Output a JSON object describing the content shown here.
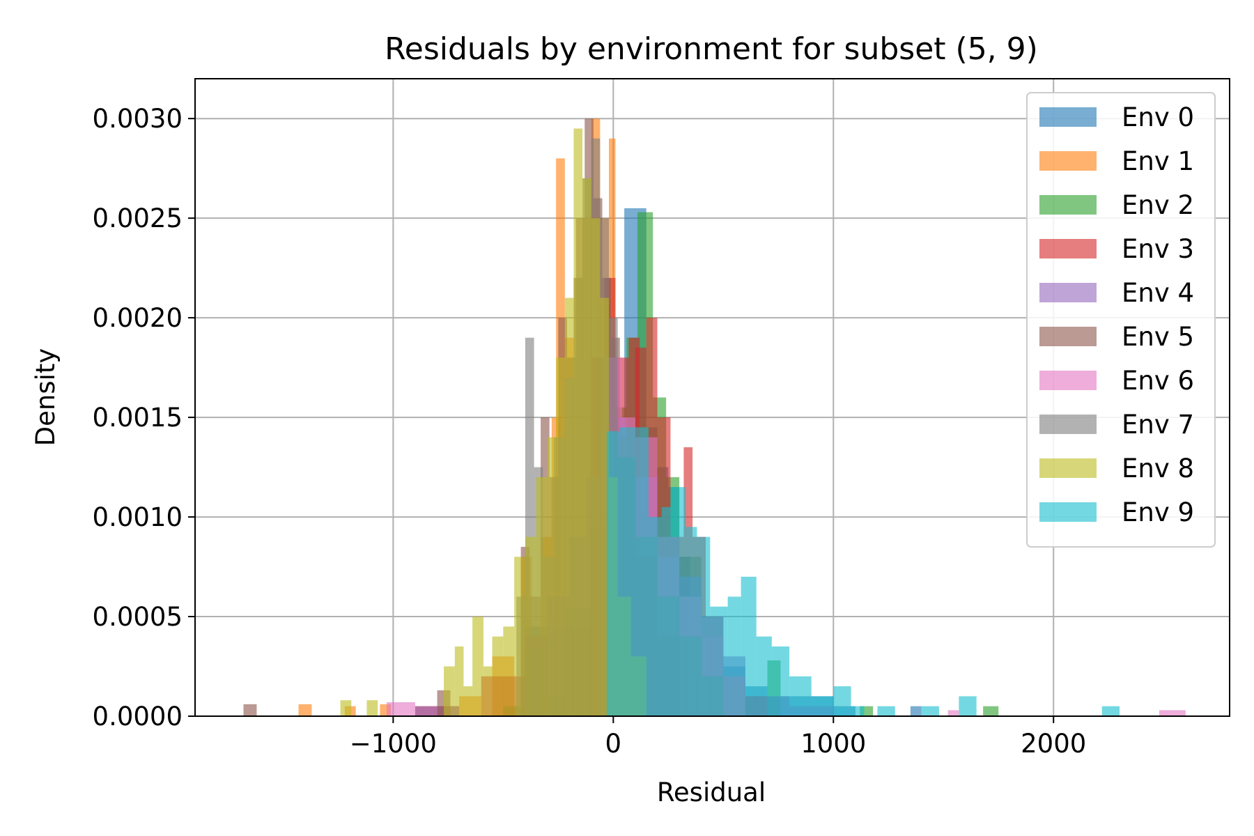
{
  "chart_data": {
    "type": "histogram",
    "title": "Residuals by environment for subset (5, 9)",
    "xlabel": "Residual",
    "ylabel": "Density",
    "xlim": [
      -1900,
      2800
    ],
    "ylim": [
      0,
      0.0032
    ],
    "xticks": [
      -1000,
      0,
      1000,
      2000
    ],
    "xtick_labels": [
      "−1000",
      "0",
      "1000",
      "2000"
    ],
    "yticks": [
      0.0,
      0.0005,
      0.001,
      0.0015,
      0.002,
      0.0025,
      0.003
    ],
    "ytick_labels": [
      "0.0000",
      "0.0005",
      "0.0010",
      "0.0015",
      "0.0020",
      "0.0025",
      "0.0030"
    ],
    "grid": true,
    "legend_position": "top-right",
    "alpha": 0.6,
    "series": [
      {
        "name": "Env 0",
        "color": "#1f77b4",
        "bins": [
          [
            -400,
            -100,
            0.00045
          ],
          [
            -100,
            0,
            0.0009
          ],
          [
            0,
            50,
            0.00145
          ],
          [
            50,
            150,
            0.00255
          ],
          [
            150,
            200,
            0.00145
          ],
          [
            200,
            250,
            0.00125
          ],
          [
            250,
            300,
            0.00115
          ],
          [
            300,
            350,
            0.0008
          ],
          [
            350,
            400,
            0.0006
          ],
          [
            400,
            450,
            0.0004
          ],
          [
            450,
            500,
            0.0003
          ],
          [
            500,
            600,
            0.00025
          ],
          [
            600,
            700,
            0.00015
          ],
          [
            700,
            1000,
            0.0001
          ],
          [
            1000,
            1100,
            5e-05
          ],
          [
            1350,
            1400,
            5e-05
          ]
        ]
      },
      {
        "name": "Env 1",
        "color": "#ff7f0e",
        "bins": [
          [
            -1430,
            -1370,
            6e-05
          ],
          [
            -1220,
            -1170,
            5e-05
          ],
          [
            -1060,
            -1010,
            6e-05
          ],
          [
            -700,
            -600,
            0.0001
          ],
          [
            -550,
            -450,
            0.0003
          ],
          [
            -420,
            -370,
            0.0008
          ],
          [
            -330,
            -280,
            0.0009
          ],
          [
            -280,
            -240,
            0.0015
          ],
          [
            -260,
            -220,
            0.0028
          ],
          [
            -220,
            -180,
            0.0019
          ],
          [
            -180,
            -140,
            0.0022
          ],
          [
            -140,
            -100,
            0.0025
          ],
          [
            -100,
            -60,
            0.003
          ],
          [
            -60,
            -20,
            0.0025
          ],
          [
            -20,
            10,
            0.0029
          ],
          [
            10,
            60,
            0.0012
          ],
          [
            60,
            120,
            0.0006
          ],
          [
            120,
            200,
            0.0003
          ]
        ]
      },
      {
        "name": "Env 2",
        "color": "#2ca02c",
        "bins": [
          [
            -500,
            -400,
            5e-05
          ],
          [
            -400,
            -300,
            0.00035
          ],
          [
            -300,
            -220,
            0.0001
          ],
          [
            -220,
            -100,
            0.00055
          ],
          [
            -100,
            0,
            0.00095
          ],
          [
            0,
            60,
            0.00155
          ],
          [
            60,
            110,
            0.0019
          ],
          [
            110,
            180,
            0.00253
          ],
          [
            180,
            240,
            0.0016
          ],
          [
            240,
            300,
            0.0012
          ],
          [
            300,
            400,
            0.0008
          ],
          [
            400,
            500,
            0.0004
          ],
          [
            500,
            600,
            0.00015
          ],
          [
            600,
            700,
            0.0001
          ],
          [
            700,
            760,
            0.00028
          ],
          [
            1120,
            1180,
            5e-05
          ],
          [
            1680,
            1750,
            5e-05
          ]
        ]
      },
      {
        "name": "Env 3",
        "color": "#d62728",
        "bins": [
          [
            -900,
            -700,
            5e-05
          ],
          [
            -600,
            -400,
            0.0002
          ],
          [
            -400,
            -300,
            0.0004
          ],
          [
            -100,
            -40,
            0.0018
          ],
          [
            -40,
            10,
            0.0022
          ],
          [
            10,
            70,
            0.0018
          ],
          [
            70,
            120,
            0.0019
          ],
          [
            100,
            150,
            0.00185
          ],
          [
            150,
            200,
            0.002
          ],
          [
            200,
            260,
            0.0015
          ],
          [
            260,
            320,
            0.0009
          ],
          [
            320,
            360,
            0.00135
          ],
          [
            360,
            420,
            0.0009
          ],
          [
            420,
            500,
            0.0005
          ],
          [
            500,
            600,
            0.0002
          ],
          [
            600,
            700,
            0.0001
          ]
        ]
      },
      {
        "name": "Env 4",
        "color": "#9467bd",
        "bins": [
          [
            -900,
            -700,
            5e-05
          ],
          [
            -400,
            -300,
            0.0004
          ],
          [
            -300,
            -200,
            0.0006
          ],
          [
            -200,
            -120,
            0.0009
          ],
          [
            -120,
            -60,
            0.0012
          ],
          [
            -60,
            0,
            0.0018
          ],
          [
            0,
            60,
            0.0015
          ],
          [
            60,
            200,
            0.0012
          ],
          [
            200,
            300,
            0.0008
          ],
          [
            300,
            400,
            0.0007
          ],
          [
            400,
            500,
            0.0005
          ],
          [
            500,
            600,
            0.0003
          ],
          [
            600,
            800,
            0.0001
          ],
          [
            800,
            1000,
            5e-05
          ]
        ]
      },
      {
        "name": "Env 5",
        "color": "#8c564b",
        "bins": [
          [
            -1680,
            -1620,
            6e-05
          ],
          [
            -800,
            -740,
            0.00013
          ],
          [
            -420,
            -380,
            0.00085
          ],
          [
            -380,
            -330,
            0.0006
          ],
          [
            -330,
            -290,
            0.0015
          ],
          [
            -290,
            -250,
            0.0012
          ],
          [
            -250,
            -210,
            0.002
          ],
          [
            -210,
            -170,
            0.0018
          ],
          [
            -170,
            -130,
            0.0025
          ],
          [
            -130,
            -90,
            0.003
          ],
          [
            -90,
            -50,
            0.0026
          ],
          [
            -50,
            -10,
            0.0022
          ],
          [
            -10,
            30,
            0.0019
          ],
          [
            30,
            100,
            0.0014
          ],
          [
            100,
            200,
            0.0008
          ],
          [
            200,
            300,
            0.0004
          ]
        ]
      },
      {
        "name": "Env 6",
        "color": "#e377c2",
        "bins": [
          [
            -1030,
            -960,
            7e-05
          ],
          [
            -960,
            -900,
            7e-05
          ],
          [
            -20,
            40,
            0.0018
          ],
          [
            40,
            100,
            0.0015
          ],
          [
            100,
            200,
            0.0014
          ],
          [
            200,
            300,
            0.0009
          ],
          [
            300,
            400,
            0.0006
          ],
          [
            400,
            500,
            0.0004
          ],
          [
            500,
            600,
            0.0002
          ],
          [
            1520,
            1570,
            3e-05
          ],
          [
            2480,
            2600,
            3e-05
          ]
        ]
      },
      {
        "name": "Env 7",
        "color": "#7f7f7f",
        "bins": [
          [
            -440,
            -400,
            0.0006
          ],
          [
            -400,
            -360,
            0.0019
          ],
          [
            -360,
            -320,
            0.00125
          ],
          [
            -320,
            -270,
            0.0008
          ],
          [
            -270,
            -220,
            0.0014
          ],
          [
            -220,
            -180,
            0.0017
          ],
          [
            -180,
            -140,
            0.0022
          ],
          [
            -140,
            -100,
            0.0027
          ],
          [
            -100,
            -60,
            0.0029
          ],
          [
            -60,
            -20,
            0.0025
          ],
          [
            -20,
            20,
            0.002
          ],
          [
            20,
            100,
            0.0013
          ],
          [
            100,
            200,
            0.0009
          ],
          [
            200,
            300,
            0.0006
          ],
          [
            300,
            400,
            0.0004
          ],
          [
            400,
            500,
            0.0002
          ]
        ]
      },
      {
        "name": "Env 8",
        "color": "#bcbd22",
        "bins": [
          [
            -1240,
            -1190,
            8e-05
          ],
          [
            -1120,
            -1070,
            8e-05
          ],
          [
            -770,
            -720,
            0.00025
          ],
          [
            -720,
            -680,
            0.00035
          ],
          [
            -680,
            -640,
            0.00015
          ],
          [
            -640,
            -590,
            0.0005
          ],
          [
            -590,
            -550,
            0.00025
          ],
          [
            -550,
            -500,
            0.0004
          ],
          [
            -500,
            -450,
            0.00045
          ],
          [
            -450,
            -400,
            0.0008
          ],
          [
            -400,
            -350,
            0.0009
          ],
          [
            -350,
            -300,
            0.0012
          ],
          [
            -300,
            -260,
            0.0014
          ],
          [
            -260,
            -220,
            0.0018
          ],
          [
            -220,
            -180,
            0.0021
          ],
          [
            -180,
            -140,
            0.00295
          ],
          [
            -140,
            -100,
            0.0027
          ],
          [
            -100,
            -60,
            0.0025
          ],
          [
            -60,
            -20,
            0.0021
          ],
          [
            -20,
            20,
            0.0012
          ],
          [
            20,
            80,
            0.0006
          ],
          [
            80,
            150,
            0.0003
          ]
        ]
      },
      {
        "name": "Env 9",
        "color": "#17becf",
        "bins": [
          [
            -30,
            30,
            0.00143
          ],
          [
            30,
            160,
            0.00145
          ],
          [
            160,
            220,
            0.001
          ],
          [
            220,
            260,
            0.00105
          ],
          [
            260,
            330,
            0.00115
          ],
          [
            330,
            380,
            0.00095
          ],
          [
            380,
            440,
            0.0009
          ],
          [
            440,
            520,
            0.00055
          ],
          [
            520,
            580,
            0.0006
          ],
          [
            580,
            650,
            0.0007
          ],
          [
            650,
            720,
            0.0004
          ],
          [
            720,
            800,
            0.00035
          ],
          [
            800,
            900,
            0.0002
          ],
          [
            900,
            1000,
            0.0001
          ],
          [
            1000,
            1080,
            0.00015
          ],
          [
            1080,
            1140,
            5e-05
          ],
          [
            1200,
            1280,
            5e-05
          ],
          [
            1400,
            1480,
            5e-05
          ],
          [
            1570,
            1650,
            0.0001
          ],
          [
            2220,
            2300,
            5e-05
          ]
        ]
      }
    ]
  }
}
